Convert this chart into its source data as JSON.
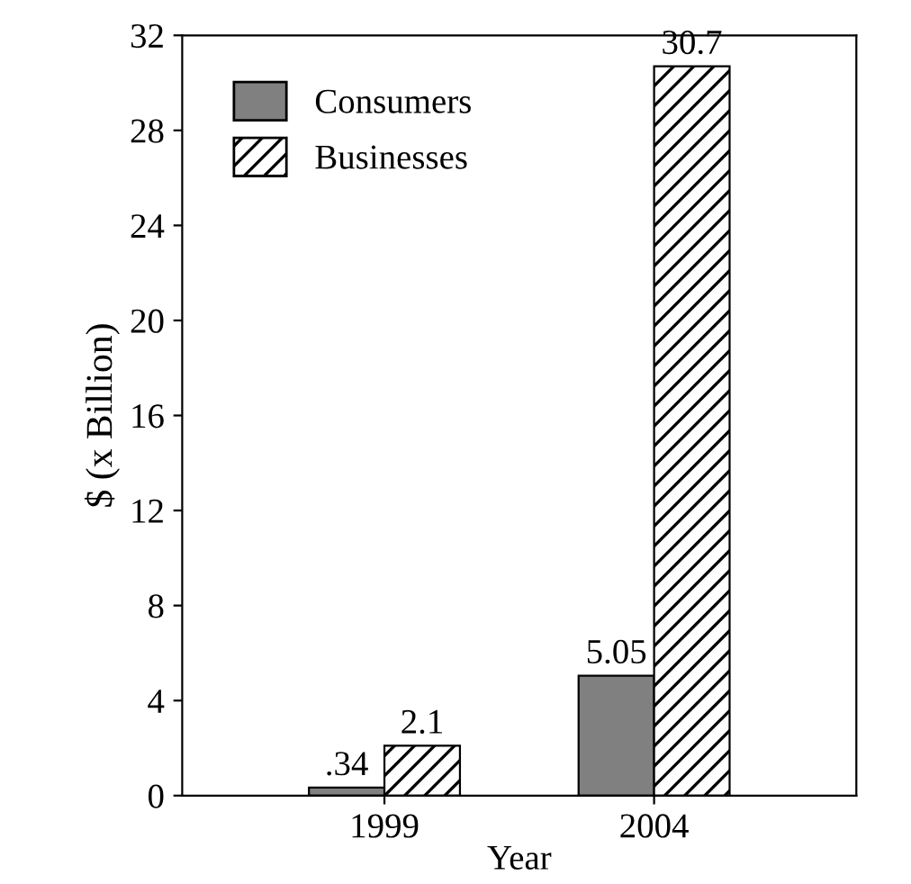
{
  "chart_data": {
    "type": "bar",
    "xlabel": "Year",
    "ylabel": "$ (x Billion)",
    "categories": [
      "1999",
      "2004"
    ],
    "series": [
      {
        "name": "Consumers",
        "color": "#808080",
        "values": [
          0.34,
          5.05
        ],
        "value_labels": [
          ".34",
          "5.05"
        ]
      },
      {
        "name": "Businesses",
        "color": "#000000",
        "values": [
          2.1,
          30.7
        ],
        "value_labels": [
          "2.1",
          "30.7"
        ]
      }
    ],
    "ylim": [
      0,
      32
    ],
    "yticks": [
      0,
      4,
      8,
      12,
      16,
      20,
      24,
      28,
      32
    ],
    "legend": "top left",
    "grid": false
  }
}
